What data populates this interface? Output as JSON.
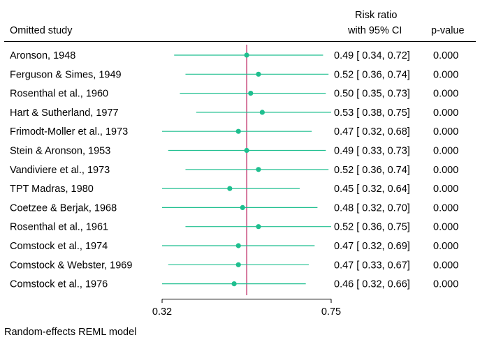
{
  "chart_data": {
    "type": "forest",
    "header": {
      "left": "Omitted study",
      "middle_line1": "Risk ratio",
      "middle_line2": "with 95% CI",
      "right": "p-value"
    },
    "scale": "log",
    "xlim": [
      0.32,
      0.75
    ],
    "xticks": [
      "0.32",
      "0.75"
    ],
    "reference_line": 0.49,
    "rows": [
      {
        "study": "Aronson, 1948",
        "rr": 0.49,
        "lo": 0.34,
        "hi": 0.72,
        "ci_text": "0.49 [ 0.34,  0.72]",
        "p": "0.000"
      },
      {
        "study": "Ferguson & Simes, 1949",
        "rr": 0.52,
        "lo": 0.36,
        "hi": 0.74,
        "ci_text": "0.52 [ 0.36,  0.74]",
        "p": "0.000"
      },
      {
        "study": "Rosenthal et al., 1960",
        "rr": 0.5,
        "lo": 0.35,
        "hi": 0.73,
        "ci_text": "0.50 [ 0.35,  0.73]",
        "p": "0.000"
      },
      {
        "study": "Hart & Sutherland, 1977",
        "rr": 0.53,
        "lo": 0.38,
        "hi": 0.75,
        "ci_text": "0.53 [ 0.38,  0.75]",
        "p": "0.000"
      },
      {
        "study": "Frimodt-Moller et al., 1973",
        "rr": 0.47,
        "lo": 0.32,
        "hi": 0.68,
        "ci_text": "0.47 [ 0.32,  0.68]",
        "p": "0.000"
      },
      {
        "study": "Stein & Aronson, 1953",
        "rr": 0.49,
        "lo": 0.33,
        "hi": 0.73,
        "ci_text": "0.49 [ 0.33,  0.73]",
        "p": "0.000"
      },
      {
        "study": "Vandiviere et al., 1973",
        "rr": 0.52,
        "lo": 0.36,
        "hi": 0.74,
        "ci_text": "0.52 [ 0.36,  0.74]",
        "p": "0.000"
      },
      {
        "study": "TPT Madras, 1980",
        "rr": 0.45,
        "lo": 0.32,
        "hi": 0.64,
        "ci_text": "0.45 [ 0.32,  0.64]",
        "p": "0.000"
      },
      {
        "study": "Coetzee & Berjak, 1968",
        "rr": 0.48,
        "lo": 0.32,
        "hi": 0.7,
        "ci_text": "0.48 [ 0.32,  0.70]",
        "p": "0.000"
      },
      {
        "study": "Rosenthal et al., 1961",
        "rr": 0.52,
        "lo": 0.36,
        "hi": 0.75,
        "ci_text": "0.52 [ 0.36,  0.75]",
        "p": "0.000"
      },
      {
        "study": "Comstock et al., 1974",
        "rr": 0.47,
        "lo": 0.32,
        "hi": 0.69,
        "ci_text": "0.47 [ 0.32,  0.69]",
        "p": "0.000"
      },
      {
        "study": "Comstock & Webster, 1969",
        "rr": 0.47,
        "lo": 0.33,
        "hi": 0.67,
        "ci_text": "0.47 [ 0.33,  0.67]",
        "p": "0.000"
      },
      {
        "study": "Comstock et al., 1976",
        "rr": 0.46,
        "lo": 0.32,
        "hi": 0.66,
        "ci_text": "0.46 [ 0.32,  0.66]",
        "p": "0.000"
      }
    ],
    "footnote": "Random-effects REML model",
    "colors": {
      "marker": "#1fbf8f",
      "ci_line": "#1fbf8f",
      "reference_line": "#c0306a",
      "axis": "#000000"
    }
  }
}
